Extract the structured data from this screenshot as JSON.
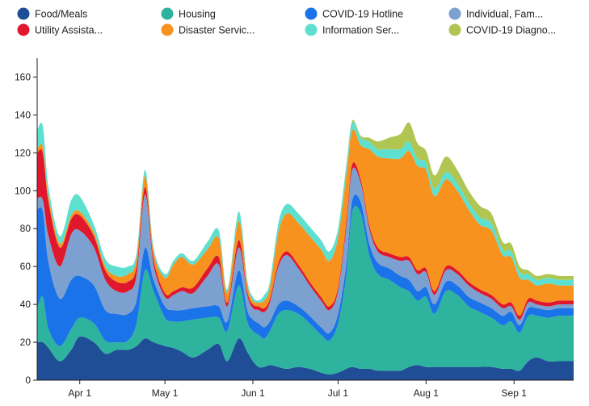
{
  "chart_data": {
    "type": "area",
    "stacked": true,
    "title": "",
    "xlabel": "",
    "ylabel": "",
    "ylim": [
      0,
      170
    ],
    "y_ticks": [
      0,
      20,
      40,
      60,
      80,
      100,
      120,
      140,
      160
    ],
    "x_tick_labels": [
      "Apr 1",
      "May 1",
      "Jun 1",
      "Jul 1",
      "Aug 1",
      "Sep 1"
    ],
    "x_tick_days": [
      15,
      45,
      76,
      106,
      137,
      168
    ],
    "x_domain_days": [
      0,
      189
    ],
    "legend_placement": "top",
    "x_knots": [
      0,
      2,
      4,
      8,
      12,
      15,
      20,
      24,
      28,
      32,
      35,
      38,
      41,
      45,
      48,
      51,
      55,
      60,
      64,
      67,
      71,
      74,
      76,
      78,
      80,
      82,
      85,
      88,
      92,
      96,
      100,
      103,
      106,
      109,
      111,
      114,
      117,
      120,
      124,
      128,
      131,
      134,
      137,
      140,
      144,
      148,
      152,
      156,
      160,
      164,
      167,
      170,
      173,
      176,
      180,
      184,
      189
    ],
    "series": [
      {
        "name": "Food/Meals",
        "color": "#1f4e96",
        "values": [
          20,
          20,
          17,
          10,
          16,
          23,
          20,
          14,
          16,
          16,
          18,
          22,
          20,
          18,
          17,
          15,
          12,
          16,
          19,
          10,
          22,
          15,
          10,
          7,
          7,
          8,
          7,
          6,
          7,
          6,
          4,
          3,
          4,
          6,
          7,
          6,
          6,
          5,
          5,
          5,
          7,
          8,
          7,
          7,
          7,
          7,
          7,
          7,
          7,
          6,
          6,
          5,
          10,
          12,
          10,
          10,
          10
        ]
      },
      {
        "name": "Housing",
        "color": "#2eb39e",
        "values": [
          18,
          24,
          10,
          8,
          11,
          10,
          10,
          7,
          4,
          5,
          12,
          36,
          27,
          15,
          14,
          16,
          20,
          17,
          14,
          16,
          28,
          16,
          16,
          17,
          15,
          18,
          28,
          31,
          28,
          24,
          20,
          18,
          26,
          50,
          82,
          82,
          60,
          51,
          48,
          44,
          40,
          34,
          37,
          28,
          40,
          38,
          32,
          29,
          26,
          23,
          25,
          20,
          24,
          22,
          23,
          24,
          24
        ]
      },
      {
        "name": "COVID-19 Hotline",
        "color": "#1a73e8",
        "values": [
          52,
          45,
          35,
          25,
          26,
          22,
          20,
          16,
          15,
          14,
          12,
          12,
          6,
          6,
          6,
          6,
          6,
          6,
          6,
          5,
          8,
          6,
          6,
          6,
          6,
          5,
          5,
          5,
          4,
          4,
          4,
          4,
          5,
          6,
          6,
          6,
          6,
          6,
          6,
          6,
          6,
          5,
          5,
          5,
          5,
          5,
          5,
          5,
          5,
          5,
          5,
          4,
          4,
          4,
          4,
          4,
          4
        ]
      },
      {
        "name": "Individual, Fam...",
        "color": "#7ca1d1",
        "values": [
          6,
          6,
          14,
          17,
          24,
          24,
          20,
          16,
          12,
          12,
          13,
          28,
          8,
          5,
          8,
          10,
          8,
          16,
          22,
          8,
          12,
          8,
          6,
          7,
          8,
          10,
          20,
          24,
          20,
          16,
          14,
          12,
          12,
          20,
          16,
          10,
          8,
          6,
          6,
          8,
          10,
          9,
          8,
          5,
          6,
          6,
          6,
          5,
          5,
          4,
          3,
          3,
          3,
          2,
          2,
          2,
          2
        ]
      },
      {
        "name": "Utility Assista...",
        "color": "#e0182d",
        "values": [
          24,
          25,
          18,
          10,
          8,
          8,
          6,
          5,
          5,
          5,
          5,
          4,
          3,
          2,
          2,
          2,
          3,
          4,
          4,
          2,
          4,
          2,
          2,
          2,
          2,
          2,
          2,
          2,
          2,
          2,
          2,
          2,
          2,
          3,
          3,
          2,
          2,
          2,
          2,
          2,
          2,
          2,
          2,
          2,
          2,
          2,
          2,
          2,
          2,
          2,
          2,
          2,
          2,
          2,
          2,
          2,
          2
        ]
      },
      {
        "name": "Disaster Servic...",
        "color": "#f7921e",
        "values": [
          2,
          3,
          3,
          2,
          2,
          2,
          2,
          2,
          3,
          4,
          4,
          6,
          4,
          8,
          14,
          16,
          12,
          10,
          10,
          5,
          10,
          4,
          2,
          2,
          4,
          6,
          16,
          20,
          22,
          24,
          25,
          24,
          26,
          24,
          18,
          18,
          40,
          48,
          50,
          52,
          56,
          55,
          52,
          50,
          46,
          42,
          38,
          34,
          34,
          26,
          24,
          20,
          10,
          8,
          10,
          8,
          8
        ]
      },
      {
        "name": "Information Ser...",
        "color": "#5de0d0",
        "values": [
          10,
          11,
          5,
          4,
          8,
          8,
          4,
          4,
          5,
          4,
          3,
          3,
          2,
          2,
          2,
          2,
          2,
          4,
          4,
          2,
          5,
          2,
          2,
          1,
          3,
          3,
          5,
          5,
          5,
          5,
          5,
          5,
          5,
          5,
          4,
          4,
          4,
          4,
          5,
          5,
          5,
          4,
          4,
          4,
          4,
          4,
          4,
          4,
          4,
          3,
          3,
          3,
          3,
          3,
          3,
          3,
          3
        ]
      },
      {
        "name": "COVID-19 Diagno...",
        "color": "#b0c552",
        "values": [
          0,
          0,
          0,
          0,
          0,
          0,
          0,
          0,
          0,
          0,
          0,
          0,
          0,
          0,
          0,
          0,
          0,
          0,
          0,
          0,
          0,
          0,
          0,
          0,
          0,
          0,
          0,
          0,
          0,
          0,
          0,
          0,
          0,
          1,
          1,
          1,
          2,
          4,
          6,
          8,
          10,
          8,
          6,
          7,
          8,
          7,
          6,
          6,
          5,
          4,
          4,
          3,
          2,
          2,
          2,
          2,
          2
        ]
      }
    ]
  }
}
